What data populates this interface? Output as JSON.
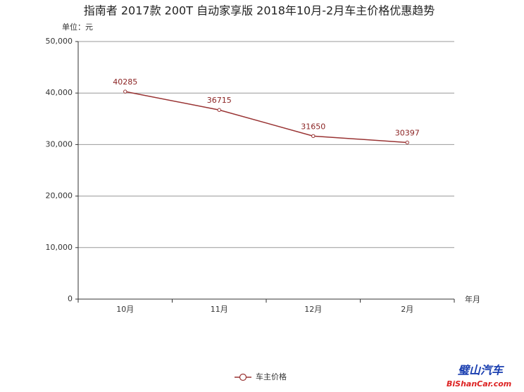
{
  "chart_data": {
    "type": "line",
    "title": "指南者 2017款 200T 自动家享版 2018年10月-2月车主价格优惠趋势",
    "y_unit": "单位：元",
    "x_label": "年月",
    "categories": [
      "10月",
      "11月",
      "12月",
      "2月"
    ],
    "series": [
      {
        "name": "车主价格",
        "color": "#993333",
        "values": [
          40285,
          36715,
          31650,
          30397
        ]
      }
    ],
    "ylim": [
      0,
      50000
    ],
    "yticks": [
      0,
      {
        "value": 10000,
        "label": "10,000"
      },
      {
        "value": 20000,
        "label": "20,000"
      },
      {
        "value": 30000,
        "label": "30,000"
      },
      {
        "value": 40000,
        "label": "40,000"
      },
      {
        "value": 50000,
        "label": "50,000"
      }
    ],
    "grid": true,
    "legend": "bottom",
    "watermark": {
      "cn": "璧山汽车",
      "en": "BiShanCar.com"
    }
  }
}
